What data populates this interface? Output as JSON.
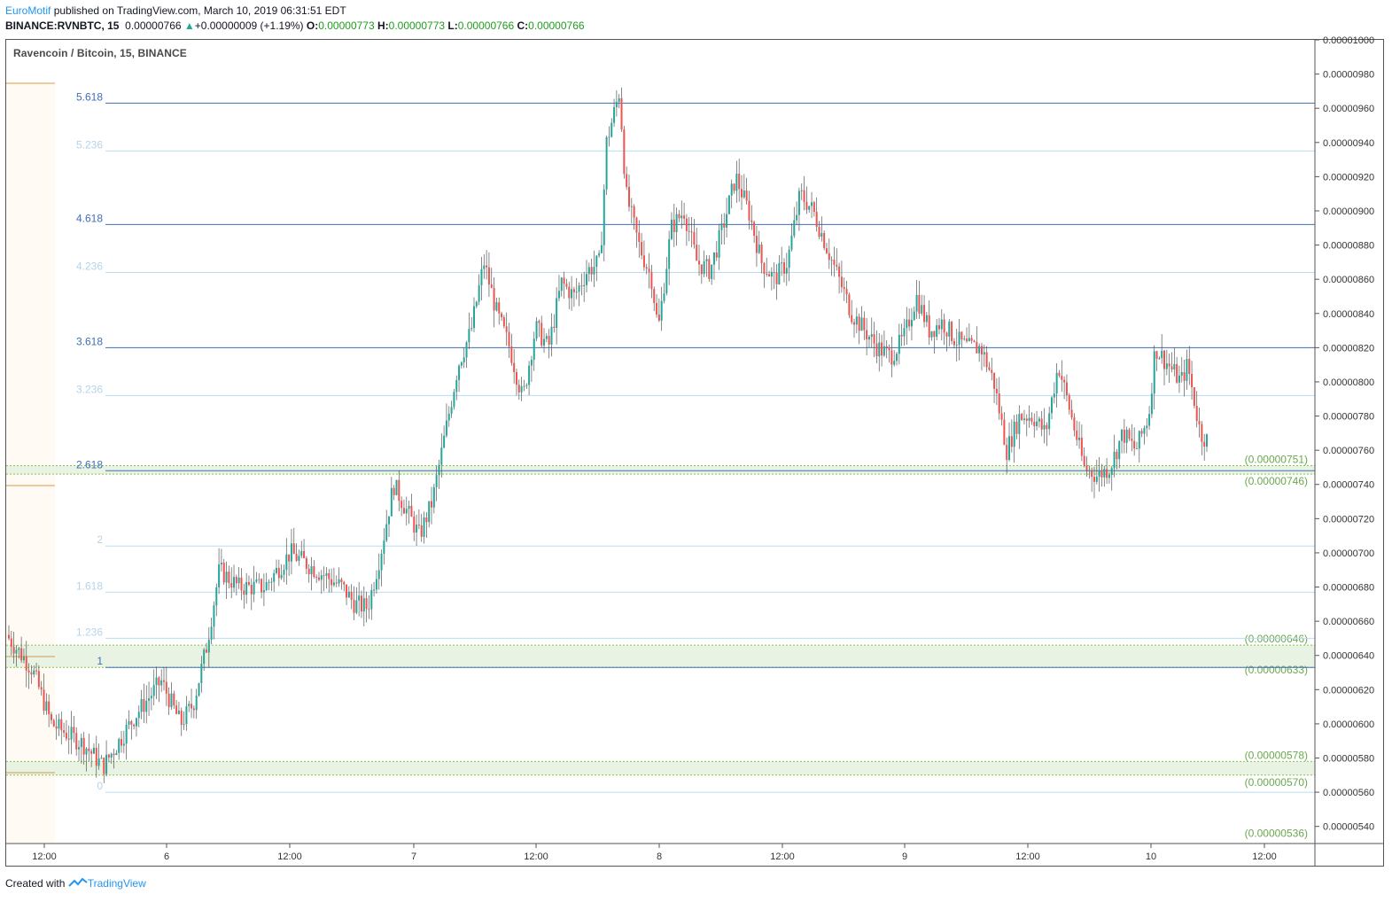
{
  "header": {
    "author": "EuroMotif",
    "published": " published on TradingView.com, March 10, 2019 06:31:51 EDT",
    "symbol": "BINANCE:RVNBTC, 15",
    "price": "0.00000766",
    "change_arrow": "▲",
    "change": "+0.00000009 (+1.19%)",
    "open_label": "O:",
    "open": "0.00000773",
    "high_label": "H:",
    "high": "0.00000773",
    "low_label": "L:",
    "low": "0.00000766",
    "close_label": "C:",
    "close": "0.00000766"
  },
  "footer": {
    "created": "Created with",
    "brand": "TradingView"
  },
  "colors": {
    "up": "#26a69a",
    "down": "#ef5350",
    "fib_main": "#2962ff",
    "fib_light": "#c4e1f5",
    "zone": "#e8f3e4",
    "zone_text": "#6aa84f"
  },
  "chart_data": {
    "type": "candlestick",
    "title": "Ravencoin / Bitcoin, 15, BINANCE",
    "y_range": [
      5.3e-06,
      1e-05
    ],
    "y_ticks": [
      "0.00000540",
      "0.00000560",
      "0.00000580",
      "0.00000600",
      "0.00000620",
      "0.00000640",
      "0.00000660",
      "0.00000680",
      "0.00000700",
      "0.00000720",
      "0.00000740",
      "0.00000760",
      "0.00000780",
      "0.00000800",
      "0.00000820",
      "0.00000840",
      "0.00000860",
      "0.00000880",
      "0.00000900",
      "0.00000920",
      "0.00000940",
      "0.00000960",
      "0.00000980",
      "0.00001000"
    ],
    "x_ticks": [
      "12:00",
      "6",
      "12:00",
      "7",
      "12:00",
      "8",
      "12:00",
      "9",
      "12:00",
      "10",
      "12:00"
    ],
    "price_path": [
      [
        0,
        6.52e-06
      ],
      [
        0.02,
        6.32e-06
      ],
      [
        0.035,
        6e-06
      ],
      [
        0.06,
        5.88e-06
      ],
      [
        0.075,
        5.75e-06
      ],
      [
        0.1,
        6.05e-06
      ],
      [
        0.12,
        6.25e-06
      ],
      [
        0.135,
        6e-06
      ],
      [
        0.145,
        6.12e-06
      ],
      [
        0.155,
        6.45e-06
      ],
      [
        0.165,
        6.9e-06
      ],
      [
        0.18,
        6.8e-06
      ],
      [
        0.2,
        6.8e-06
      ],
      [
        0.22,
        7e-06
      ],
      [
        0.24,
        6.9e-06
      ],
      [
        0.26,
        6.8e-06
      ],
      [
        0.27,
        6.7e-06
      ],
      [
        0.28,
        6.68e-06
      ],
      [
        0.29,
        7e-06
      ],
      [
        0.3,
        7.4e-06
      ],
      [
        0.31,
        7.25e-06
      ],
      [
        0.32,
        7.1e-06
      ],
      [
        0.33,
        7.3e-06
      ],
      [
        0.34,
        7.7e-06
      ],
      [
        0.35,
        8.1e-06
      ],
      [
        0.36,
        8.3e-06
      ],
      [
        0.37,
        8.7e-06
      ],
      [
        0.38,
        8.4e-06
      ],
      [
        0.39,
        8.2e-06
      ],
      [
        0.4,
        7.9e-06
      ],
      [
        0.41,
        8.32e-06
      ],
      [
        0.42,
        8.2e-06
      ],
      [
        0.43,
        8.58e-06
      ],
      [
        0.44,
        8.5e-06
      ],
      [
        0.45,
        8.65e-06
      ],
      [
        0.46,
        8.7e-06
      ],
      [
        0.465,
        9.4e-06
      ],
      [
        0.475,
        9.7e-06
      ],
      [
        0.48,
        9.1e-06
      ],
      [
        0.49,
        8.8e-06
      ],
      [
        0.5,
        8.6e-06
      ],
      [
        0.505,
        8.3e-06
      ],
      [
        0.515,
        8.9e-06
      ],
      [
        0.525,
        9e-06
      ],
      [
        0.535,
        8.7e-06
      ],
      [
        0.545,
        8.65e-06
      ],
      [
        0.555,
        8.9e-06
      ],
      [
        0.565,
        9.2e-06
      ],
      [
        0.575,
        9e-06
      ],
      [
        0.585,
        8.7e-06
      ],
      [
        0.595,
        8.6e-06
      ],
      [
        0.605,
        8.7e-06
      ],
      [
        0.615,
        9.1e-06
      ],
      [
        0.625,
        9e-06
      ],
      [
        0.635,
        8.8e-06
      ],
      [
        0.645,
        8.6e-06
      ],
      [
        0.655,
        8.4e-06
      ],
      [
        0.665,
        8.3e-06
      ],
      [
        0.675,
        8.2e-06
      ],
      [
        0.685,
        8.15e-06
      ],
      [
        0.695,
        8.25e-06
      ],
      [
        0.705,
        8.5e-06
      ],
      [
        0.715,
        8.3e-06
      ],
      [
        0.725,
        8.35e-06
      ],
      [
        0.735,
        8.25e-06
      ],
      [
        0.745,
        8.2e-06
      ],
      [
        0.755,
        8.2e-06
      ],
      [
        0.765,
        8e-06
      ],
      [
        0.775,
        7.6e-06
      ],
      [
        0.785,
        7.8e-06
      ],
      [
        0.795,
        7.8e-06
      ],
      [
        0.805,
        7.7e-06
      ],
      [
        0.815,
        8.1e-06
      ],
      [
        0.825,
        7.8e-06
      ],
      [
        0.835,
        7.5e-06
      ],
      [
        0.845,
        7.45e-06
      ],
      [
        0.855,
        7.5e-06
      ],
      [
        0.865,
        7.7e-06
      ],
      [
        0.875,
        7.6e-06
      ],
      [
        0.885,
        7.8e-06
      ],
      [
        0.89,
        8.2e-06
      ],
      [
        0.9,
        8.1e-06
      ],
      [
        0.91,
        8e-06
      ],
      [
        0.915,
        8.1e-06
      ],
      [
        0.92,
        7.9e-06
      ],
      [
        0.925,
        7.7e-06
      ],
      [
        0.93,
        7.66e-06
      ]
    ],
    "fib_levels": [
      {
        "label": "5.618",
        "style": "main",
        "price": 9.63e-06
      },
      {
        "label": "5.236",
        "style": "light",
        "price": 9.35e-06
      },
      {
        "label": "4.618",
        "style": "main",
        "price": 8.92e-06
      },
      {
        "label": "4.236",
        "style": "light",
        "price": 8.64e-06
      },
      {
        "label": "3.618",
        "style": "main",
        "price": 8.2e-06
      },
      {
        "label": "3.236",
        "style": "light",
        "price": 7.92e-06
      },
      {
        "label": "2.618",
        "style": "main",
        "price": 7.48e-06
      },
      {
        "label": "2",
        "style": "light",
        "price": 7.04e-06
      },
      {
        "label": "1.618",
        "style": "light",
        "price": 6.77e-06
      },
      {
        "label": "1.236",
        "style": "light",
        "price": 6.5e-06
      },
      {
        "label": "1",
        "style": "main",
        "price": 6.33e-06
      },
      {
        "label": "0",
        "style": "light",
        "price": 5.6e-06
      }
    ],
    "zones": [
      {
        "top_label": "(0.00000751)",
        "bottom_label": "(0.00000746)",
        "top": 7.51e-06,
        "bottom": 7.46e-06
      },
      {
        "top_label": "(0.00000646)",
        "bottom_label": "(0.00000633)",
        "top": 6.46e-06,
        "bottom": 6.33e-06
      },
      {
        "top_label": "(0.00000578)",
        "bottom_label": "(0.00000570)",
        "top": 5.78e-06,
        "bottom": 5.7e-06
      }
    ],
    "extra_label": {
      "text": "(0.00000536)",
      "price": 5.36e-06
    }
  }
}
